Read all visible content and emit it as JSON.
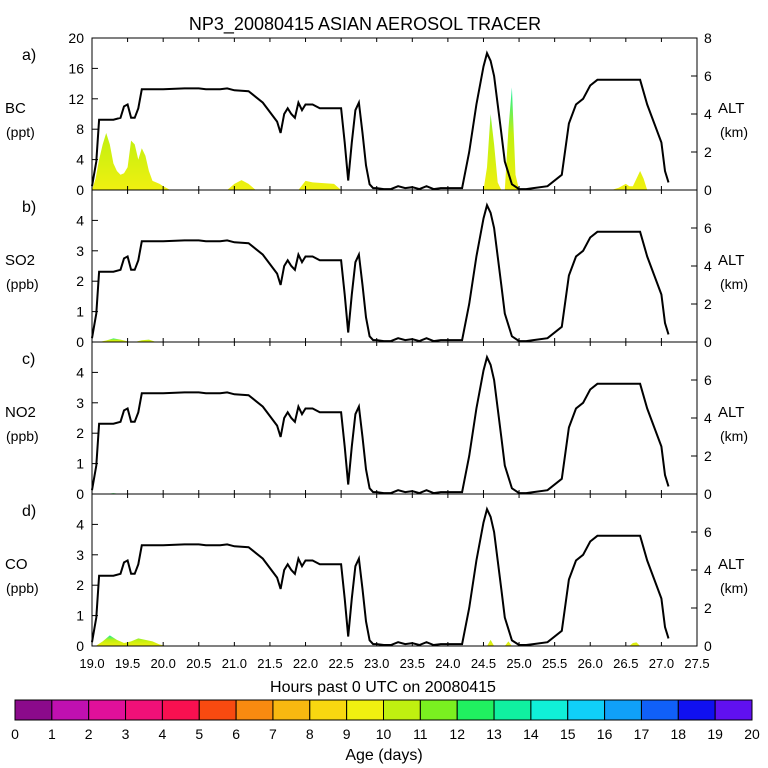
{
  "title": "NP3_20080415 ASIAN AEROSOL TRACER",
  "xlabel": "Hours past 0 UTC on 20080415",
  "colorbar": {
    "label": "Age (days)",
    "ticks": [
      "0",
      "1",
      "2",
      "3",
      "4",
      "5",
      "6",
      "7",
      "8",
      "9",
      "10",
      "11",
      "12",
      "13",
      "14",
      "15",
      "16",
      "17",
      "18",
      "19",
      "20"
    ],
    "colors": [
      "#8b0a8b",
      "#c010b0",
      "#e0109a",
      "#f01078",
      "#f81050",
      "#f84a10",
      "#f88a10",
      "#f8b810",
      "#f8d810",
      "#f0f010",
      "#c0f010",
      "#7af020",
      "#20f060",
      "#10f0a0",
      "#10f0d8",
      "#10d0f8",
      "#10a0f8",
      "#1060f8",
      "#1010f0",
      "#6010f0"
    ]
  },
  "chart_data": [
    {
      "type": "area",
      "panel_label": "a)",
      "ylabel": "BC",
      "yunit": "(ppt)",
      "ylim": [
        0,
        20
      ],
      "yticks": [
        "0",
        "4",
        "8",
        "12",
        "16",
        "20"
      ],
      "y2label": "ALT",
      "y2unit": "(km)",
      "y2lim": [
        0,
        8
      ],
      "y2ticks": [
        "0",
        "2",
        "4",
        "6",
        "8"
      ],
      "xlim": [
        19.0,
        27.5
      ],
      "xticks": [
        "19.0",
        "19.5",
        "20.0",
        "20.5",
        "21.0",
        "21.5",
        "22.0",
        "22.5",
        "23.0",
        "23.5",
        "24.0",
        "24.5",
        "25.0",
        "25.5",
        "26.0",
        "26.5",
        "27.0",
        "27.5"
      ],
      "tracer": {
        "x": [
          19.0,
          19.05,
          19.1,
          19.15,
          19.2,
          19.25,
          19.3,
          19.35,
          19.4,
          19.45,
          19.5,
          19.55,
          19.6,
          19.65,
          19.7,
          19.75,
          19.8,
          19.85,
          19.9,
          19.95,
          20.0,
          20.1,
          20.9,
          21.0,
          21.1,
          21.2,
          21.3,
          21.9,
          22.0,
          22.1,
          22.4,
          22.5,
          24.5,
          24.55,
          24.6,
          24.65,
          24.7,
          24.75,
          24.8,
          24.85,
          24.9,
          24.95,
          25.0,
          25.05,
          25.1,
          26.3,
          26.4,
          26.5,
          26.55,
          26.6,
          26.65,
          26.7,
          26.75,
          26.8
        ],
        "y": [
          0,
          1.5,
          4,
          6,
          7.5,
          6,
          3.5,
          2.5,
          2,
          2.2,
          3,
          6.5,
          6,
          4,
          5.5,
          4.5,
          2.5,
          1.2,
          1,
          0.8,
          0.5,
          0,
          0,
          0.8,
          1.3,
          0.8,
          0,
          0,
          1.2,
          1,
          0.8,
          0,
          0,
          3,
          10,
          6,
          1,
          0,
          0,
          8,
          13.5,
          2,
          0,
          0,
          0,
          0,
          0.3,
          0.8,
          0.5,
          0.5,
          1.5,
          2.5,
          1.5,
          0
        ]
      },
      "altitude": {
        "x": [
          19.0,
          19.06,
          19.1,
          19.2,
          19.3,
          19.4,
          19.45,
          19.5,
          19.55,
          19.6,
          19.65,
          19.7,
          19.75,
          19.8,
          20.0,
          20.3,
          20.5,
          20.6,
          20.8,
          20.9,
          21.0,
          21.2,
          21.4,
          21.6,
          21.65,
          21.7,
          21.75,
          21.8,
          21.85,
          21.9,
          21.95,
          22.0,
          22.05,
          22.1,
          22.15,
          22.2,
          22.5,
          22.55,
          22.6,
          22.65,
          22.7,
          22.75,
          22.8,
          22.85,
          22.9,
          22.95,
          23.0,
          23.1,
          23.2,
          23.3,
          23.4,
          23.5,
          23.6,
          23.7,
          23.8,
          23.9,
          24.0,
          24.1,
          24.2,
          24.3,
          24.4,
          24.5,
          24.55,
          24.6,
          24.65,
          24.7,
          24.75,
          24.8,
          24.9,
          25.0,
          25.1,
          25.2,
          25.4,
          25.6,
          25.7,
          25.8,
          25.9,
          26.0,
          26.1,
          26.3,
          26.6,
          26.7,
          26.8,
          26.9,
          27.0,
          27.05,
          27.1
        ],
        "y": [
          0.2,
          1.5,
          3.7,
          3.7,
          3.7,
          3.8,
          4.4,
          4.5,
          3.8,
          3.8,
          4.3,
          5.3,
          5.3,
          5.3,
          5.3,
          5.35,
          5.35,
          5.3,
          5.3,
          5.35,
          5.25,
          5.2,
          4.6,
          3.6,
          3.0,
          4.0,
          4.3,
          4.0,
          3.8,
          4.6,
          4.2,
          4.5,
          4.5,
          4.5,
          4.4,
          4.3,
          4.3,
          2.5,
          0.5,
          2.5,
          4.2,
          4.6,
          3.0,
          1.3,
          0.3,
          0.1,
          0.1,
          0.05,
          0.05,
          0.2,
          0.1,
          0.15,
          0.05,
          0.2,
          0.05,
          0.1,
          0.1,
          0.1,
          0.1,
          2.0,
          4.5,
          6.5,
          7.2,
          6.8,
          6.0,
          4.5,
          3.0,
          1.5,
          0.3,
          0.05,
          0.05,
          0.1,
          0.2,
          0.8,
          3.5,
          4.5,
          4.8,
          5.5,
          5.8,
          5.8,
          5.8,
          5.8,
          4.5,
          3.5,
          2.5,
          1.0,
          0.4
        ]
      }
    },
    {
      "type": "area",
      "panel_label": "b)",
      "ylabel": "SO2",
      "yunit": "(ppb)",
      "ylim": [
        0,
        5
      ],
      "yticks": [
        "0",
        "1",
        "2",
        "3",
        "4"
      ],
      "y2label": "ALT",
      "y2unit": "(km)",
      "y2lim": [
        0,
        8
      ],
      "y2ticks": [
        "0",
        "2",
        "4",
        "6"
      ],
      "xlim": [
        19.0,
        27.5
      ],
      "tracer": {
        "x": [
          19.1,
          19.2,
          19.3,
          19.4,
          19.5,
          19.6,
          19.7,
          19.8,
          19.9
        ],
        "y": [
          0,
          0.05,
          0.12,
          0.08,
          0.02,
          0,
          0.06,
          0.08,
          0
        ]
      },
      "altitude_ref": 0
    },
    {
      "type": "area",
      "panel_label": "c)",
      "ylabel": "NO2",
      "yunit": "(ppb)",
      "ylim": [
        0,
        5
      ],
      "yticks": [
        "0",
        "1",
        "2",
        "3",
        "4"
      ],
      "y2label": "ALT",
      "y2unit": "(km)",
      "y2lim": [
        0,
        8
      ],
      "y2ticks": [
        "0",
        "2",
        "4",
        "6"
      ],
      "xlim": [
        19.0,
        27.5
      ],
      "tracer": {
        "x": [
          19.2,
          19.3,
          19.4
        ],
        "y": [
          0,
          0.03,
          0
        ]
      },
      "altitude_ref": 0
    },
    {
      "type": "area",
      "panel_label": "d)",
      "ylabel": "CO",
      "yunit": "(ppb)",
      "ylim": [
        0,
        5
      ],
      "yticks": [
        "0",
        "1",
        "2",
        "3",
        "4"
      ],
      "y2label": "ALT",
      "y2unit": "(km)",
      "y2lim": [
        0,
        8
      ],
      "y2ticks": [
        "0",
        "2",
        "4",
        "6"
      ],
      "xlim": [
        19.0,
        27.5
      ],
      "tracer": {
        "x": [
          19.05,
          19.15,
          19.25,
          19.35,
          19.45,
          19.55,
          19.65,
          19.75,
          19.85,
          19.95,
          20.05,
          24.55,
          24.6,
          24.65,
          24.8,
          24.85,
          24.9,
          26.55,
          26.6,
          26.65,
          26.7
        ],
        "y": [
          0,
          0.15,
          0.35,
          0.2,
          0.1,
          0.15,
          0.25,
          0.2,
          0.15,
          0.05,
          0,
          0,
          0.2,
          0,
          0,
          0.15,
          0,
          0,
          0.1,
          0.12,
          0
        ]
      },
      "altitude_ref": 0
    }
  ]
}
